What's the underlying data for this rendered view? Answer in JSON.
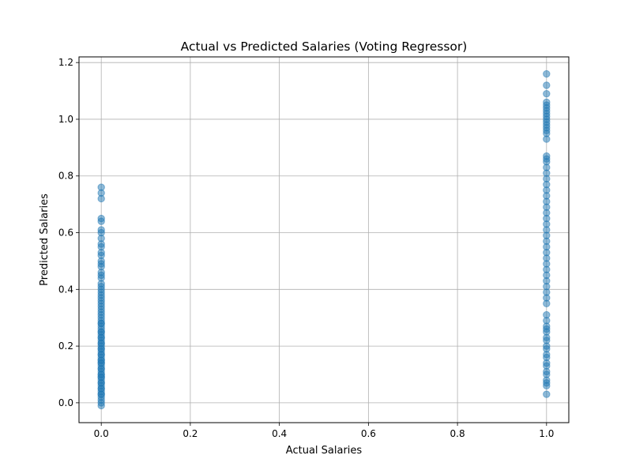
{
  "chart_data": {
    "type": "scatter",
    "title": "Actual vs Predicted Salaries (Voting Regressor)",
    "xlabel": "Actual Salaries",
    "ylabel": "Predicted Salaries",
    "xlim": [
      -0.05,
      1.05
    ],
    "ylim": [
      -0.07,
      1.22
    ],
    "xticks": [
      "0.0",
      "0.2",
      "0.4",
      "0.6",
      "0.8",
      "1.0"
    ],
    "yticks": [
      "0.0",
      "0.2",
      "0.4",
      "0.6",
      "0.8",
      "1.0",
      "1.2"
    ],
    "grid": true,
    "marker_color": "#1f77b4",
    "marker_alpha": 0.5,
    "series": [
      {
        "x": 0,
        "y": [
          -0.01,
          0.0,
          0.01,
          0.02,
          0.03,
          0.03,
          0.04,
          0.05,
          0.05,
          0.06,
          0.07,
          0.07,
          0.08,
          0.09,
          0.09,
          0.1,
          0.1,
          0.11,
          0.12,
          0.12,
          0.13,
          0.14,
          0.14,
          0.15,
          0.15,
          0.16,
          0.17,
          0.17,
          0.18,
          0.19,
          0.19,
          0.2,
          0.21,
          0.21,
          0.22,
          0.23,
          0.23,
          0.24,
          0.25,
          0.25,
          0.26,
          0.27,
          0.28,
          0.28,
          0.29,
          0.3,
          0.31,
          0.32,
          0.33,
          0.34,
          0.35,
          0.36,
          0.37,
          0.38,
          0.39,
          0.4,
          0.41,
          0.42,
          0.44,
          0.45,
          0.46,
          0.48,
          0.49,
          0.5,
          0.52,
          0.53,
          0.55,
          0.56,
          0.58,
          0.6,
          0.61,
          0.64,
          0.65,
          0.72,
          0.74,
          0.76
        ]
      },
      {
        "x": 1,
        "y": [
          0.03,
          0.06,
          0.07,
          0.08,
          0.1,
          0.11,
          0.13,
          0.14,
          0.16,
          0.17,
          0.19,
          0.2,
          0.22,
          0.23,
          0.25,
          0.26,
          0.27,
          0.29,
          0.31,
          0.35,
          0.37,
          0.39,
          0.41,
          0.43,
          0.45,
          0.47,
          0.49,
          0.51,
          0.53,
          0.55,
          0.57,
          0.59,
          0.61,
          0.63,
          0.65,
          0.67,
          0.69,
          0.71,
          0.73,
          0.75,
          0.77,
          0.79,
          0.81,
          0.83,
          0.85,
          0.86,
          0.87,
          0.93,
          0.95,
          0.96,
          0.97,
          0.98,
          0.99,
          1.0,
          1.01,
          1.02,
          1.03,
          1.04,
          1.05,
          1.06,
          1.09,
          1.12,
          1.16
        ]
      }
    ]
  }
}
